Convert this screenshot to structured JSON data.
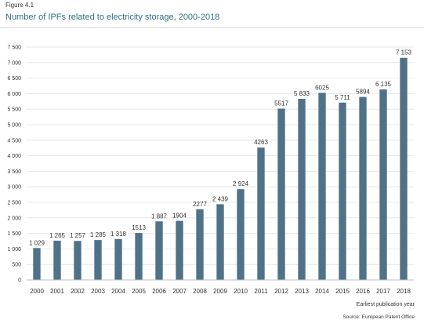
{
  "figure_label": "Figure 4.1",
  "chart_data": {
    "type": "bar",
    "title": "Number of IPFs related to electricity storage, 2000-2018",
    "xlabel": "Earliest publication year",
    "ylabel": "",
    "source": "Source: European Patent Office",
    "ylim": [
      0,
      7500
    ],
    "yticks": [
      0,
      500,
      1000,
      1500,
      2000,
      2500,
      3000,
      3500,
      4000,
      4500,
      5000,
      5500,
      6000,
      6500,
      7000,
      7500
    ],
    "ytick_labels": [
      "0",
      "500",
      "1 000",
      "1 500",
      "2 000",
      "2 500",
      "3 000",
      "3 500",
      "4 000",
      "4 500",
      "5 000",
      "5 500",
      "6 000",
      "6 500",
      "7 000",
      "7 500"
    ],
    "categories": [
      "2000",
      "2001",
      "2002",
      "2003",
      "2004",
      "2005",
      "2006",
      "2007",
      "2008",
      "2009",
      "2010",
      "2011",
      "2012",
      "2013",
      "2014",
      "2015",
      "2016",
      "2017",
      "2018"
    ],
    "values": [
      1029,
      1265,
      1257,
      1285,
      1318,
      1513,
      1887,
      1904,
      2277,
      2439,
      2924,
      4263,
      5517,
      5833,
      6025,
      5711,
      5894,
      6135,
      7153
    ],
    "value_labels": [
      "1 029",
      "1 265",
      "1 257",
      "1 285",
      "1 318",
      "1513",
      "1 887",
      "1904",
      "2277",
      "2 439",
      "2 924",
      "4263",
      "5517",
      "5 833",
      "6025",
      "5 711",
      "5894",
      "6 135",
      "7 153"
    ],
    "bar_color": "#4f7288",
    "grid": true
  }
}
